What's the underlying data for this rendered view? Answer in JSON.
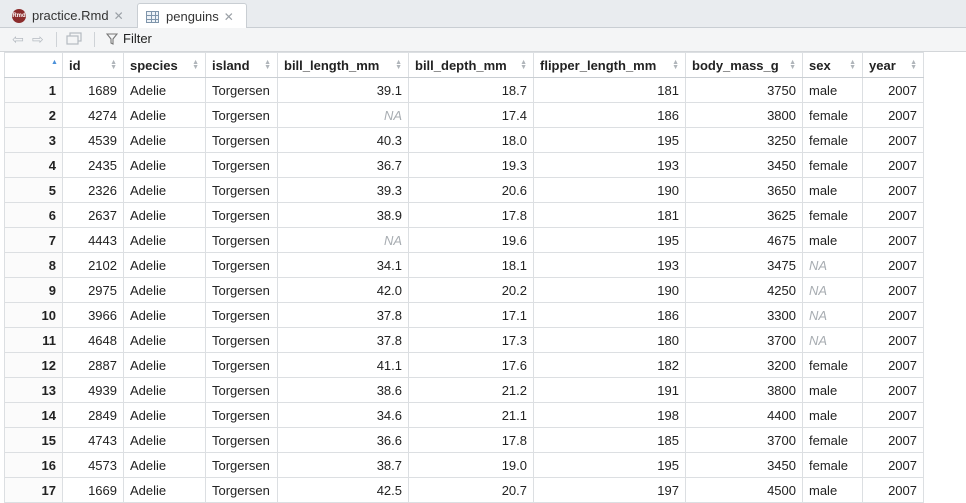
{
  "tabs": [
    {
      "label": "practice.Rmd",
      "icon": "rmd-file-icon",
      "active": false
    },
    {
      "label": "penguins",
      "icon": "data-grid-icon",
      "active": true
    }
  ],
  "toolbar": {
    "filter_label": "Filter"
  },
  "table": {
    "columns": [
      "id",
      "species",
      "island",
      "bill_length_mm",
      "bill_depth_mm",
      "flipper_length_mm",
      "body_mass_g",
      "sex",
      "year"
    ],
    "numeric": [
      true,
      false,
      false,
      true,
      true,
      true,
      true,
      false,
      true
    ],
    "na_text": "NA",
    "rows": [
      [
        "1",
        "1689",
        "Adelie",
        "Torgersen",
        "39.1",
        "18.7",
        "181",
        "3750",
        "male",
        "2007"
      ],
      [
        "2",
        "4274",
        "Adelie",
        "Torgersen",
        "NA",
        "17.4",
        "186",
        "3800",
        "female",
        "2007"
      ],
      [
        "3",
        "4539",
        "Adelie",
        "Torgersen",
        "40.3",
        "18.0",
        "195",
        "3250",
        "female",
        "2007"
      ],
      [
        "4",
        "2435",
        "Adelie",
        "Torgersen",
        "36.7",
        "19.3",
        "193",
        "3450",
        "female",
        "2007"
      ],
      [
        "5",
        "2326",
        "Adelie",
        "Torgersen",
        "39.3",
        "20.6",
        "190",
        "3650",
        "male",
        "2007"
      ],
      [
        "6",
        "2637",
        "Adelie",
        "Torgersen",
        "38.9",
        "17.8",
        "181",
        "3625",
        "female",
        "2007"
      ],
      [
        "7",
        "4443",
        "Adelie",
        "Torgersen",
        "NA",
        "19.6",
        "195",
        "4675",
        "male",
        "2007"
      ],
      [
        "8",
        "2102",
        "Adelie",
        "Torgersen",
        "34.1",
        "18.1",
        "193",
        "3475",
        "NA",
        "2007"
      ],
      [
        "9",
        "2975",
        "Adelie",
        "Torgersen",
        "42.0",
        "20.2",
        "190",
        "4250",
        "NA",
        "2007"
      ],
      [
        "10",
        "3966",
        "Adelie",
        "Torgersen",
        "37.8",
        "17.1",
        "186",
        "3300",
        "NA",
        "2007"
      ],
      [
        "11",
        "4648",
        "Adelie",
        "Torgersen",
        "37.8",
        "17.3",
        "180",
        "3700",
        "NA",
        "2007"
      ],
      [
        "12",
        "2887",
        "Adelie",
        "Torgersen",
        "41.1",
        "17.6",
        "182",
        "3200",
        "female",
        "2007"
      ],
      [
        "13",
        "4939",
        "Adelie",
        "Torgersen",
        "38.6",
        "21.2",
        "191",
        "3800",
        "male",
        "2007"
      ],
      [
        "14",
        "2849",
        "Adelie",
        "Torgersen",
        "34.6",
        "21.1",
        "198",
        "4400",
        "male",
        "2007"
      ],
      [
        "15",
        "4743",
        "Adelie",
        "Torgersen",
        "36.6",
        "17.8",
        "185",
        "3700",
        "female",
        "2007"
      ],
      [
        "16",
        "4573",
        "Adelie",
        "Torgersen",
        "38.7",
        "19.0",
        "195",
        "3450",
        "female",
        "2007"
      ],
      [
        "17",
        "1669",
        "Adelie",
        "Torgersen",
        "42.5",
        "20.7",
        "197",
        "4500",
        "male",
        "2007"
      ]
    ]
  },
  "colors": {
    "accent": "#4a90d9",
    "na_text": "#a8adb2",
    "rmd_icon": "#8b2c2c"
  }
}
